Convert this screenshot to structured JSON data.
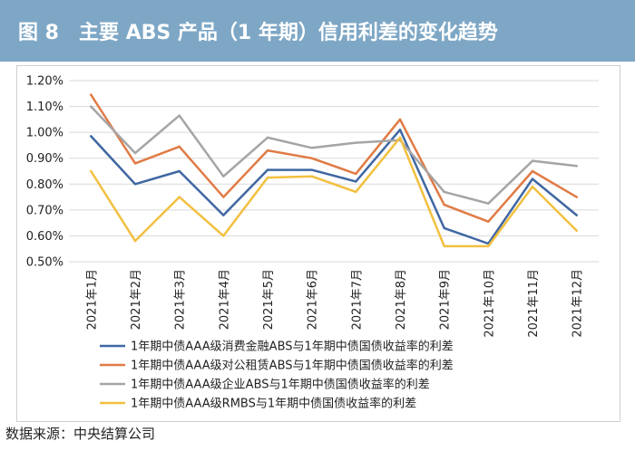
{
  "header": {
    "title": "图 8　主要 ABS 产品（1 年期）信用利差的变化趋势"
  },
  "footer": {
    "source": "数据来源：中央结算公司"
  },
  "chart_data": {
    "type": "line",
    "title": "",
    "xlabel": "",
    "ylabel": "",
    "ylim": [
      0.005,
      0.012
    ],
    "y_ticks": [
      "1.20%",
      "1.10%",
      "1.00%",
      "0.90%",
      "0.80%",
      "0.70%",
      "0.60%",
      "0.50%"
    ],
    "y_tick_values": [
      0.012,
      0.011,
      0.01,
      0.009,
      0.008,
      0.007,
      0.006,
      0.005
    ],
    "categories": [
      "2021年1月",
      "2021年2月",
      "2021年3月",
      "2021年4月",
      "2021年5月",
      "2021年6月",
      "2021年7月",
      "2021年8月",
      "2021年9月",
      "2021年10月",
      "2021年11月",
      "2021年12月"
    ],
    "grid": true,
    "legend_position": "bottom",
    "series": [
      {
        "name": "1年期中债AAA级消费金融ABS与1年期中债国债收益率的利差",
        "color": "#3f67a2",
        "values": [
          0.00985,
          0.008,
          0.0085,
          0.0068,
          0.00855,
          0.00855,
          0.0081,
          0.0101,
          0.0063,
          0.0057,
          0.0082,
          0.0068
        ]
      },
      {
        "name": "1年期中债AAA级对公租赁ABS与1年期中债国债收益率的利差",
        "color": "#e07b45",
        "values": [
          0.01145,
          0.0088,
          0.00945,
          0.0075,
          0.0093,
          0.009,
          0.0084,
          0.0105,
          0.0072,
          0.00655,
          0.0085,
          0.0075
        ]
      },
      {
        "name": "1年期中债AAA级企业ABS与1年期中债国债收益率的利差",
        "color": "#a5a5a5",
        "values": [
          0.011,
          0.0092,
          0.01065,
          0.0083,
          0.0098,
          0.0094,
          0.0096,
          0.0097,
          0.0077,
          0.00725,
          0.0089,
          0.0087
        ]
      },
      {
        "name": "1年期中债AAA级RMBS与1年期中债国债收益率的利差",
        "color": "#f2c040",
        "values": [
          0.0085,
          0.0058,
          0.0075,
          0.006,
          0.00825,
          0.0083,
          0.0077,
          0.0098,
          0.0056,
          0.0056,
          0.0079,
          0.0062
        ]
      }
    ]
  }
}
